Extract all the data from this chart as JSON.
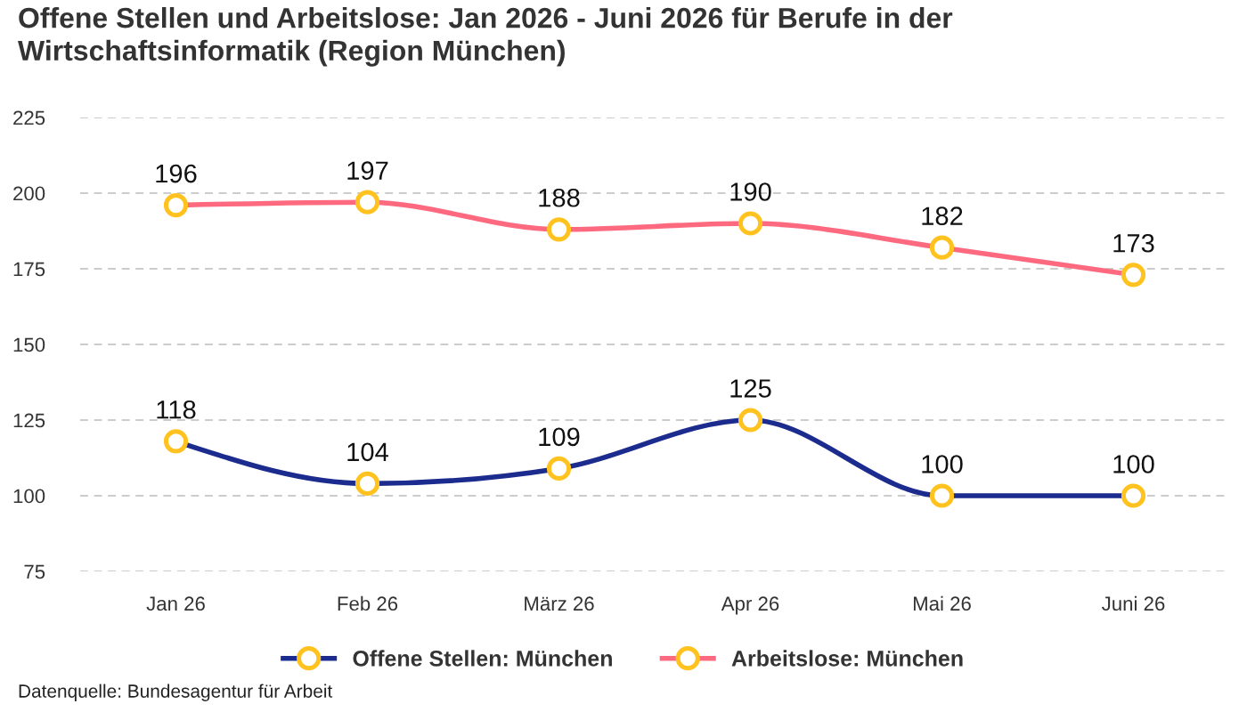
{
  "chart_data": {
    "type": "line",
    "title": "Offene Stellen und Arbeitslose: Jan 2026 - Juni 2026 für Berufe in der Wirtschaftsinformatik (Region München)",
    "categories": [
      "Jan 26",
      "Feb 26",
      "März 26",
      "Apr 26",
      "Mai 26",
      "Juni 26"
    ],
    "series": [
      {
        "name": "Offene Stellen: München",
        "color": "#1c2b8e",
        "values": [
          118,
          104,
          109,
          125,
          100,
          100
        ]
      },
      {
        "name": "Arbeitslose: München",
        "color": "#fd6a80",
        "values": [
          196,
          197,
          188,
          190,
          182,
          173
        ]
      }
    ],
    "ylim": [
      75,
      225
    ],
    "yticks": [
      75,
      100,
      125,
      150,
      175,
      200,
      225
    ],
    "grid": "y",
    "legend": "bottom",
    "marker": "circle",
    "line_style": "solid",
    "data_labels": true,
    "annotations": [
      "Datenquelle: Bundesagentur für Arbeit"
    ]
  }
}
